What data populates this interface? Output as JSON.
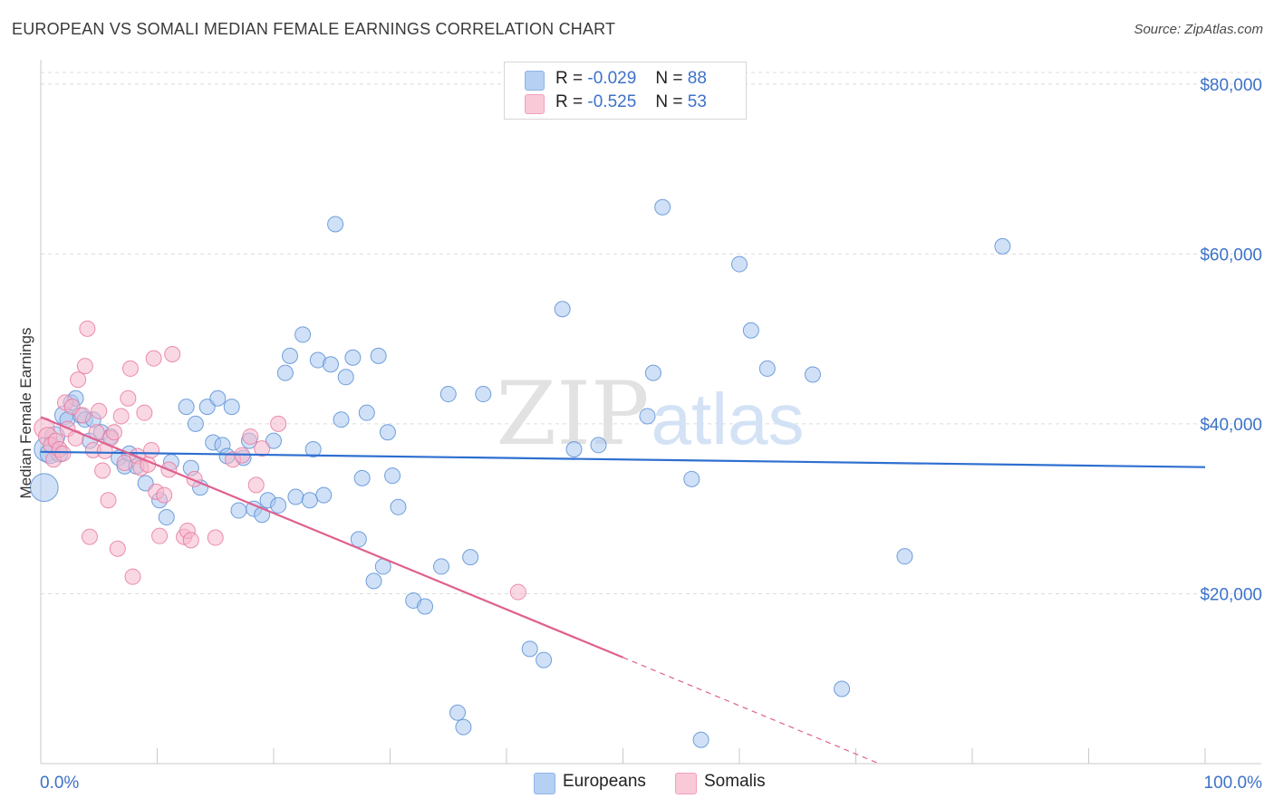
{
  "title": "EUROPEAN VS SOMALI MEDIAN FEMALE EARNINGS CORRELATION CHART",
  "source": "Source: ZipAtlas.com",
  "watermark": {
    "zip": "ZIP",
    "atlas": "atlas"
  },
  "legend": {
    "rows": [
      {
        "r_label": "R =",
        "r_value": "-0.029",
        "n_label": "N =",
        "n_value": "88",
        "color": "#a9c8f0"
      },
      {
        "r_label": "R =",
        "r_value": "-0.525",
        "n_label": "N =",
        "n_value": "53",
        "color": "#f5b8cc"
      }
    ]
  },
  "bottom_legend": [
    {
      "label": "Europeans",
      "color": "#a9c8f0"
    },
    {
      "label": "Somalis",
      "color": "#f5b8cc"
    }
  ],
  "chart_data": {
    "type": "scatter",
    "title": "EUROPEAN VS SOMALI MEDIAN FEMALE EARNINGS CORRELATION CHART",
    "xlabel": "",
    "ylabel": "Median Female Earnings",
    "xlim": [
      0,
      100
    ],
    "ylim": [
      0,
      82000
    ],
    "x_tick_labels": [
      {
        "value": 0,
        "label": "0.0%"
      },
      {
        "value": 100,
        "label": "100.0%"
      }
    ],
    "y_ticks": [
      {
        "value": 20000,
        "label": "$20,000"
      },
      {
        "value": 40000,
        "label": "$40,000"
      },
      {
        "value": 60000,
        "label": "$60,000"
      },
      {
        "value": 80000,
        "label": "$80,000"
      }
    ],
    "grid": true,
    "legend_position": "top-center",
    "series": [
      {
        "name": "Europeans",
        "color": "#5b8fd6",
        "fill": "#a9c8f0",
        "trend": {
          "x0": 0,
          "y0": 36700,
          "x1": 100,
          "y1": 34900,
          "color": "#2e6fd0"
        },
        "points": [
          [
            0.3,
            32500,
            1.8
          ],
          [
            0.5,
            37000,
            1.6
          ],
          [
            0.8,
            36500,
            1.3
          ],
          [
            1.2,
            38500,
            1.3
          ],
          [
            1.6,
            36500,
            1.1
          ],
          [
            2.0,
            41000,
            1.2
          ],
          [
            2.3,
            40500,
            1.0
          ],
          [
            2.6,
            42500,
            1.0
          ],
          [
            3.0,
            43000,
            1.0
          ],
          [
            3.4,
            41000,
            1.0
          ],
          [
            3.8,
            40500,
            1.0
          ],
          [
            4.2,
            38000,
            1.0
          ],
          [
            4.5,
            40500,
            1.0
          ],
          [
            5.2,
            39000,
            1.0
          ],
          [
            6.0,
            38500,
            1.0
          ],
          [
            6.7,
            36000,
            1.0
          ],
          [
            7.2,
            35000,
            1.0
          ],
          [
            7.6,
            36500,
            1.0
          ],
          [
            8.2,
            35000,
            1.0
          ],
          [
            9.0,
            33000,
            1.0
          ],
          [
            10.2,
            31000,
            1.0
          ],
          [
            10.8,
            29000,
            1.0
          ],
          [
            11.2,
            35500,
            1.0
          ],
          [
            12.5,
            42000,
            1.0
          ],
          [
            12.9,
            34800,
            1.0
          ],
          [
            13.3,
            40000,
            1.0
          ],
          [
            13.7,
            32500,
            1.0
          ],
          [
            14.3,
            42000,
            1.0
          ],
          [
            14.8,
            37800,
            1.0
          ],
          [
            15.2,
            43000,
            1.0
          ],
          [
            15.6,
            37500,
            1.0
          ],
          [
            16.0,
            36200,
            1.0
          ],
          [
            16.4,
            42000,
            1.0
          ],
          [
            17.0,
            29800,
            1.0
          ],
          [
            17.4,
            36000,
            1.0
          ],
          [
            17.9,
            38000,
            1.0
          ],
          [
            18.3,
            30000,
            1.0
          ],
          [
            19.0,
            29300,
            1.0
          ],
          [
            19.5,
            31000,
            1.0
          ],
          [
            20.0,
            38000,
            1.0
          ],
          [
            20.4,
            30400,
            1.0
          ],
          [
            21.0,
            46000,
            1.0
          ],
          [
            21.4,
            48000,
            1.0
          ],
          [
            21.9,
            31400,
            1.0
          ],
          [
            22.5,
            50500,
            1.0
          ],
          [
            23.1,
            31000,
            1.0
          ],
          [
            23.4,
            37000,
            1.0
          ],
          [
            23.8,
            47500,
            1.0
          ],
          [
            24.3,
            31600,
            1.0
          ],
          [
            24.9,
            47000,
            1.0
          ],
          [
            25.3,
            63500,
            1.0
          ],
          [
            25.8,
            40500,
            1.0
          ],
          [
            26.2,
            45500,
            1.0
          ],
          [
            26.8,
            47800,
            1.0
          ],
          [
            27.3,
            26400,
            1.0
          ],
          [
            27.6,
            33600,
            1.0
          ],
          [
            28.0,
            41300,
            1.0
          ],
          [
            28.6,
            21500,
            1.0
          ],
          [
            29.0,
            48000,
            1.0
          ],
          [
            29.4,
            23200,
            1.0
          ],
          [
            29.8,
            39000,
            1.0
          ],
          [
            30.2,
            33900,
            1.0
          ],
          [
            30.7,
            30200,
            1.0
          ],
          [
            32.0,
            19200,
            1.0
          ],
          [
            33.0,
            18500,
            1.0
          ],
          [
            34.4,
            23200,
            1.0
          ],
          [
            35.0,
            43500,
            1.0
          ],
          [
            35.8,
            6000,
            1.0
          ],
          [
            36.3,
            4300,
            1.0
          ],
          [
            36.9,
            24300,
            1.0
          ],
          [
            38.0,
            43500,
            1.0
          ],
          [
            42.0,
            13500,
            1.0
          ],
          [
            43.2,
            12200,
            1.0
          ],
          [
            44.8,
            53500,
            1.0
          ],
          [
            45.8,
            37000,
            1.0
          ],
          [
            47.9,
            37500,
            1.0
          ],
          [
            52.1,
            40900,
            1.0
          ],
          [
            52.6,
            46000,
            1.0
          ],
          [
            53.4,
            65500,
            1.0
          ],
          [
            55.9,
            33500,
            1.0
          ],
          [
            56.7,
            2800,
            1.0
          ],
          [
            60.0,
            58800,
            1.0
          ],
          [
            61.0,
            51000,
            1.0
          ],
          [
            62.4,
            46500,
            1.0
          ],
          [
            66.3,
            45800,
            1.0
          ],
          [
            68.8,
            8800,
            1.0
          ],
          [
            74.2,
            24400,
            1.0
          ],
          [
            82.6,
            60900,
            1.0
          ]
        ]
      },
      {
        "name": "Somalis",
        "color": "#e87aa0",
        "fill": "#f5b8cc",
        "trend": {
          "x0": 0,
          "y0": 40800,
          "x1": 50,
          "y1": 12500,
          "color": "#e0608e"
        },
        "trend_dashed": {
          "x0": 50,
          "y0": 12500,
          "x1": 72,
          "y1": 0
        },
        "points": [
          [
            0.3,
            39500,
            1.3
          ],
          [
            0.6,
            38500,
            1.2
          ],
          [
            0.9,
            37500,
            1.0
          ],
          [
            1.1,
            35800,
            1.0
          ],
          [
            1.3,
            38000,
            1.0
          ],
          [
            1.6,
            37000,
            1.0
          ],
          [
            1.9,
            36500,
            1.0
          ],
          [
            2.1,
            42500,
            1.0
          ],
          [
            2.3,
            39400,
            1.0
          ],
          [
            2.7,
            42000,
            1.0
          ],
          [
            3.0,
            38300,
            1.0
          ],
          [
            3.2,
            45200,
            1.0
          ],
          [
            3.6,
            41000,
            1.0
          ],
          [
            3.8,
            46800,
            1.0
          ],
          [
            4.0,
            51200,
            1.0
          ],
          [
            4.2,
            26700,
            1.0
          ],
          [
            4.5,
            36900,
            1.0
          ],
          [
            4.8,
            39000,
            1.0
          ],
          [
            5.0,
            41500,
            1.0
          ],
          [
            5.3,
            34500,
            1.0
          ],
          [
            5.5,
            36800,
            1.0
          ],
          [
            5.8,
            31000,
            1.0
          ],
          [
            6.0,
            38300,
            1.0
          ],
          [
            6.3,
            39000,
            1.0
          ],
          [
            6.6,
            25300,
            1.0
          ],
          [
            6.9,
            40900,
            1.0
          ],
          [
            7.2,
            35400,
            1.0
          ],
          [
            7.5,
            43000,
            1.0
          ],
          [
            7.7,
            46500,
            1.0
          ],
          [
            7.9,
            22000,
            1.0
          ],
          [
            8.3,
            36200,
            1.0
          ],
          [
            8.6,
            34800,
            1.0
          ],
          [
            8.9,
            41300,
            1.0
          ],
          [
            9.2,
            35200,
            1.0
          ],
          [
            9.5,
            36900,
            1.0
          ],
          [
            9.7,
            47700,
            1.0
          ],
          [
            9.9,
            32000,
            1.0
          ],
          [
            10.2,
            26800,
            1.0
          ],
          [
            10.6,
            31600,
            1.0
          ],
          [
            11.0,
            34600,
            1.0
          ],
          [
            11.3,
            48200,
            1.0
          ],
          [
            12.3,
            26700,
            1.0
          ],
          [
            12.6,
            27400,
            1.0
          ],
          [
            12.9,
            26300,
            1.0
          ],
          [
            13.2,
            33500,
            1.0
          ],
          [
            15.0,
            26600,
            1.0
          ],
          [
            16.5,
            35800,
            1.0
          ],
          [
            17.3,
            36300,
            1.0
          ],
          [
            18.0,
            38500,
            1.0
          ],
          [
            18.5,
            32800,
            1.0
          ],
          [
            19.0,
            37100,
            1.0
          ],
          [
            20.4,
            40000,
            1.0
          ],
          [
            41.0,
            20200,
            1.0
          ]
        ]
      }
    ]
  }
}
